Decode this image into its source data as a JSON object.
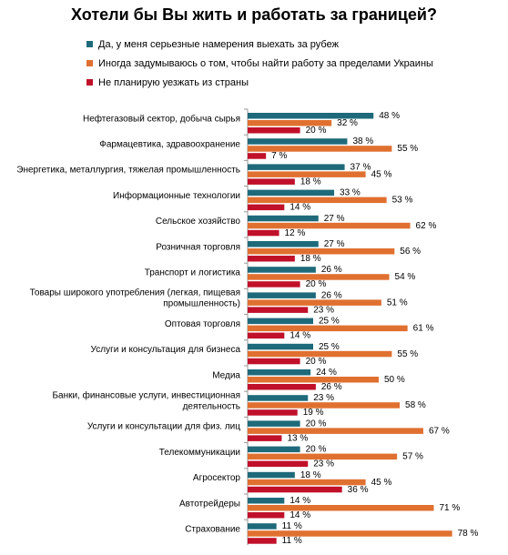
{
  "chart_data": {
    "type": "bar",
    "orientation": "horizontal",
    "title": "Хотели бы Вы жить и работать за границей?",
    "categories": [
      [
        "Нефтегазовый сектор, добыча сырья"
      ],
      [
        "Фармацевтика, здравоохранение"
      ],
      [
        "Энергетика, металлургия, тяжелая промышленность"
      ],
      [
        "Информационные технологии"
      ],
      [
        "Сельское хозяйство"
      ],
      [
        "Розничная торговля"
      ],
      [
        "Транспорт и логистика"
      ],
      [
        "Товары широкого употребления (легкая, пищевая",
        "промышленность)"
      ],
      [
        "Оптовая торговля"
      ],
      [
        "Услуги и консультация для бизнеса"
      ],
      [
        "Медиа"
      ],
      [
        "Банки, финансовые услуги, инвестиционная",
        "деятельность"
      ],
      [
        "Услуги и консультации для физ. лиц"
      ],
      [
        "Телекоммуникации"
      ],
      [
        "Агросектор"
      ],
      [
        "Автотрейдеры"
      ],
      [
        "Страхование"
      ]
    ],
    "series": [
      {
        "name": "Да, у меня серьезные намерения выехать за рубеж",
        "color": "#1e6a7a",
        "values": [
          48,
          38,
          37,
          33,
          27,
          27,
          26,
          26,
          25,
          25,
          24,
          23,
          20,
          20,
          18,
          14,
          11
        ]
      },
      {
        "name": "Иногда задумываюсь о том, чтобы найти работу за пределами Украины",
        "color": "#e07030",
        "values": [
          32,
          55,
          45,
          53,
          62,
          56,
          54,
          51,
          61,
          55,
          50,
          58,
          67,
          57,
          45,
          71,
          78
        ]
      },
      {
        "name": "Не планирую уезжать из страны",
        "color": "#c0102a",
        "values": [
          20,
          7,
          18,
          14,
          12,
          18,
          20,
          23,
          14,
          20,
          26,
          19,
          13,
          23,
          36,
          14,
          11
        ]
      }
    ],
    "value_suffix": " %",
    "legend_position": "top",
    "grid": false
  }
}
